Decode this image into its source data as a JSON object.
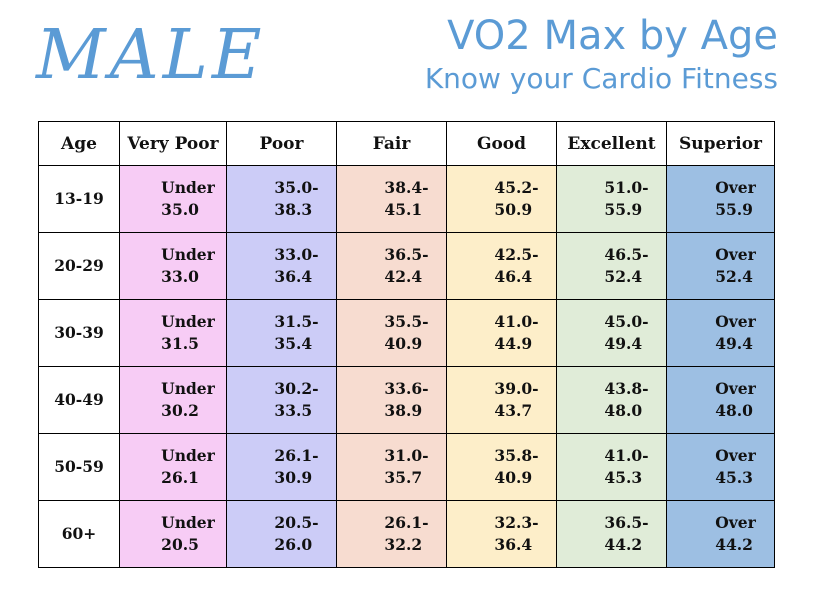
{
  "heading": {
    "gender": "MALE",
    "title": "VO2 Max by Age",
    "subtitle": "Know your Cardio Fitness"
  },
  "table": {
    "headers": [
      "Age",
      "Very Poor",
      "Poor",
      "Fair",
      "Good",
      "Excellent",
      "Superior"
    ],
    "rows": [
      {
        "age": "13-19",
        "cells": [
          [
            "Under",
            "35.0"
          ],
          [
            "35.0-",
            "38.3"
          ],
          [
            "38.4-",
            "45.1"
          ],
          [
            "45.2-",
            "50.9"
          ],
          [
            "51.0-",
            "55.9"
          ],
          [
            "Over",
            "55.9"
          ]
        ]
      },
      {
        "age": "20-29",
        "cells": [
          [
            "Under",
            "33.0"
          ],
          [
            "33.0-",
            "36.4"
          ],
          [
            "36.5-",
            "42.4"
          ],
          [
            "42.5-",
            "46.4"
          ],
          [
            "46.5-",
            "52.4"
          ],
          [
            "Over",
            "52.4"
          ]
        ]
      },
      {
        "age": "30-39",
        "cells": [
          [
            "Under",
            "31.5"
          ],
          [
            "31.5-",
            "35.4"
          ],
          [
            "35.5-",
            "40.9"
          ],
          [
            "41.0-",
            "44.9"
          ],
          [
            "45.0-",
            "49.4"
          ],
          [
            "Over",
            "49.4"
          ]
        ]
      },
      {
        "age": "40-49",
        "cells": [
          [
            "Under",
            "30.2"
          ],
          [
            "30.2-",
            "33.5"
          ],
          [
            "33.6-",
            "38.9"
          ],
          [
            "39.0-",
            "43.7"
          ],
          [
            "43.8-",
            "48.0"
          ],
          [
            "Over",
            "48.0"
          ]
        ]
      },
      {
        "age": "50-59",
        "cells": [
          [
            "Under",
            "26.1"
          ],
          [
            "26.1-",
            "30.9"
          ],
          [
            "31.0-",
            "35.7"
          ],
          [
            "35.8-",
            "40.9"
          ],
          [
            "41.0-",
            "45.3"
          ],
          [
            "Over",
            "45.3"
          ]
        ]
      },
      {
        "age": "60+",
        "cells": [
          [
            "Under",
            "20.5"
          ],
          [
            "20.5-",
            "26.0"
          ],
          [
            "26.1-",
            "32.2"
          ],
          [
            "32.3-",
            "36.4"
          ],
          [
            "36.5-",
            "44.2"
          ],
          [
            "Over",
            "44.2"
          ]
        ]
      }
    ]
  },
  "colors": {
    "heading_blue": "#5b9bd5",
    "very_poor": "#f7ccf5",
    "poor": "#ccccf7",
    "fair": "#f7dcd0",
    "good": "#fdeec9",
    "excellent": "#e0ecd8",
    "superior": "#9dbfe3"
  }
}
